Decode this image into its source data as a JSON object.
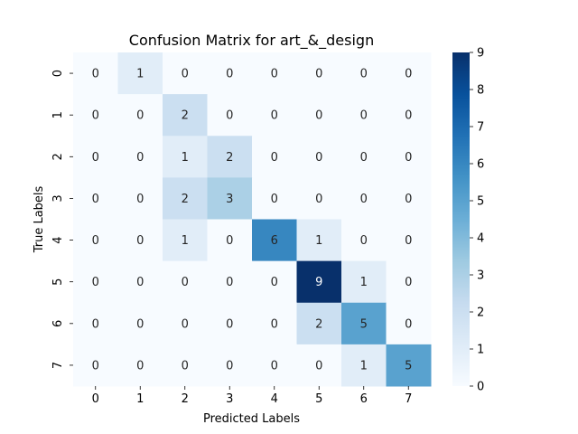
{
  "chart_data": {
    "type": "heatmap",
    "title": "Confusion Matrix for art_&_design",
    "xlabel": "Predicted Labels",
    "ylabel": "True Labels",
    "x_categories": [
      "0",
      "1",
      "2",
      "3",
      "4",
      "5",
      "6",
      "7"
    ],
    "y_categories": [
      "0",
      "1",
      "2",
      "3",
      "4",
      "5",
      "6",
      "7"
    ],
    "values": [
      [
        0,
        1,
        0,
        0,
        0,
        0,
        0,
        0
      ],
      [
        0,
        0,
        2,
        0,
        0,
        0,
        0,
        0
      ],
      [
        0,
        0,
        1,
        2,
        0,
        0,
        0,
        0
      ],
      [
        0,
        0,
        2,
        3,
        0,
        0,
        0,
        0
      ],
      [
        0,
        0,
        1,
        0,
        6,
        1,
        0,
        0
      ],
      [
        0,
        0,
        0,
        0,
        0,
        9,
        1,
        0
      ],
      [
        0,
        0,
        0,
        0,
        0,
        2,
        5,
        0
      ],
      [
        0,
        0,
        0,
        0,
        0,
        0,
        1,
        5
      ]
    ],
    "colorbar": {
      "min": 0,
      "max": 9,
      "ticks": [
        "0",
        "1",
        "2",
        "3",
        "4",
        "5",
        "6",
        "7",
        "8",
        "9"
      ],
      "colormap": "Blues"
    },
    "colors": {
      "low": "#f7fbff",
      "high": "#08306b"
    }
  }
}
